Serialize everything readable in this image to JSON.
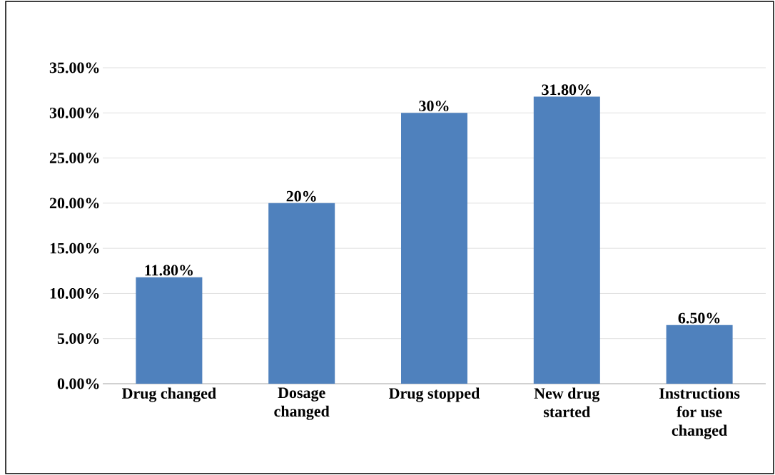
{
  "chart_data": {
    "type": "bar",
    "categories": [
      "Drug changed",
      "Dosage changed",
      "Drug stopped",
      "New drug started",
      "Instructions for use changed"
    ],
    "values": [
      11.8,
      20,
      30,
      31.8,
      6.5
    ],
    "value_labels": [
      "11.80%",
      "20%",
      "30%",
      "31.80%",
      "6.50%"
    ],
    "color": "#4f81bd",
    "ylim": [
      0,
      35
    ],
    "yticks": [
      {
        "value": 0,
        "label": "0.00%"
      },
      {
        "value": 5,
        "label": "5.00%"
      },
      {
        "value": 10,
        "label": "10.00%"
      },
      {
        "value": 15,
        "label": "15.00%"
      },
      {
        "value": 20,
        "label": "20.00%"
      },
      {
        "value": 25,
        "label": "25.00%"
      },
      {
        "value": 30,
        "label": "30.00%"
      },
      {
        "value": 35,
        "label": "35.00%"
      }
    ],
    "grid": "y"
  }
}
